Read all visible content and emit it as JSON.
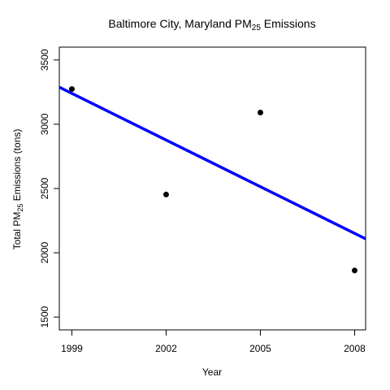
{
  "chart_data": {
    "type": "scatter",
    "title": {
      "prefix": "Baltimore City, Maryland PM",
      "subscript": "25",
      "suffix": " Emissions"
    },
    "xlabel": "Year",
    "ylabel": {
      "prefix": "Total PM",
      "subscript": "25",
      "suffix": " Emissions (tons)"
    },
    "xlim": [
      1998.6,
      2008.35
    ],
    "ylim": [
      1400,
      3600
    ],
    "x_ticks": [
      1999,
      2002,
      2005,
      2008
    ],
    "y_ticks": [
      1500,
      2000,
      2500,
      3000,
      3500
    ],
    "points": [
      {
        "x": 1999,
        "y": 3274
      },
      {
        "x": 2002,
        "y": 2453
      },
      {
        "x": 2005,
        "y": 3091
      },
      {
        "x": 2008,
        "y": 1862
      }
    ],
    "trend_line": {
      "color": "#0000ff",
      "intercept_1999": 3240,
      "slope_per_year": -121
    },
    "grid": false,
    "point_color": "#000000"
  }
}
